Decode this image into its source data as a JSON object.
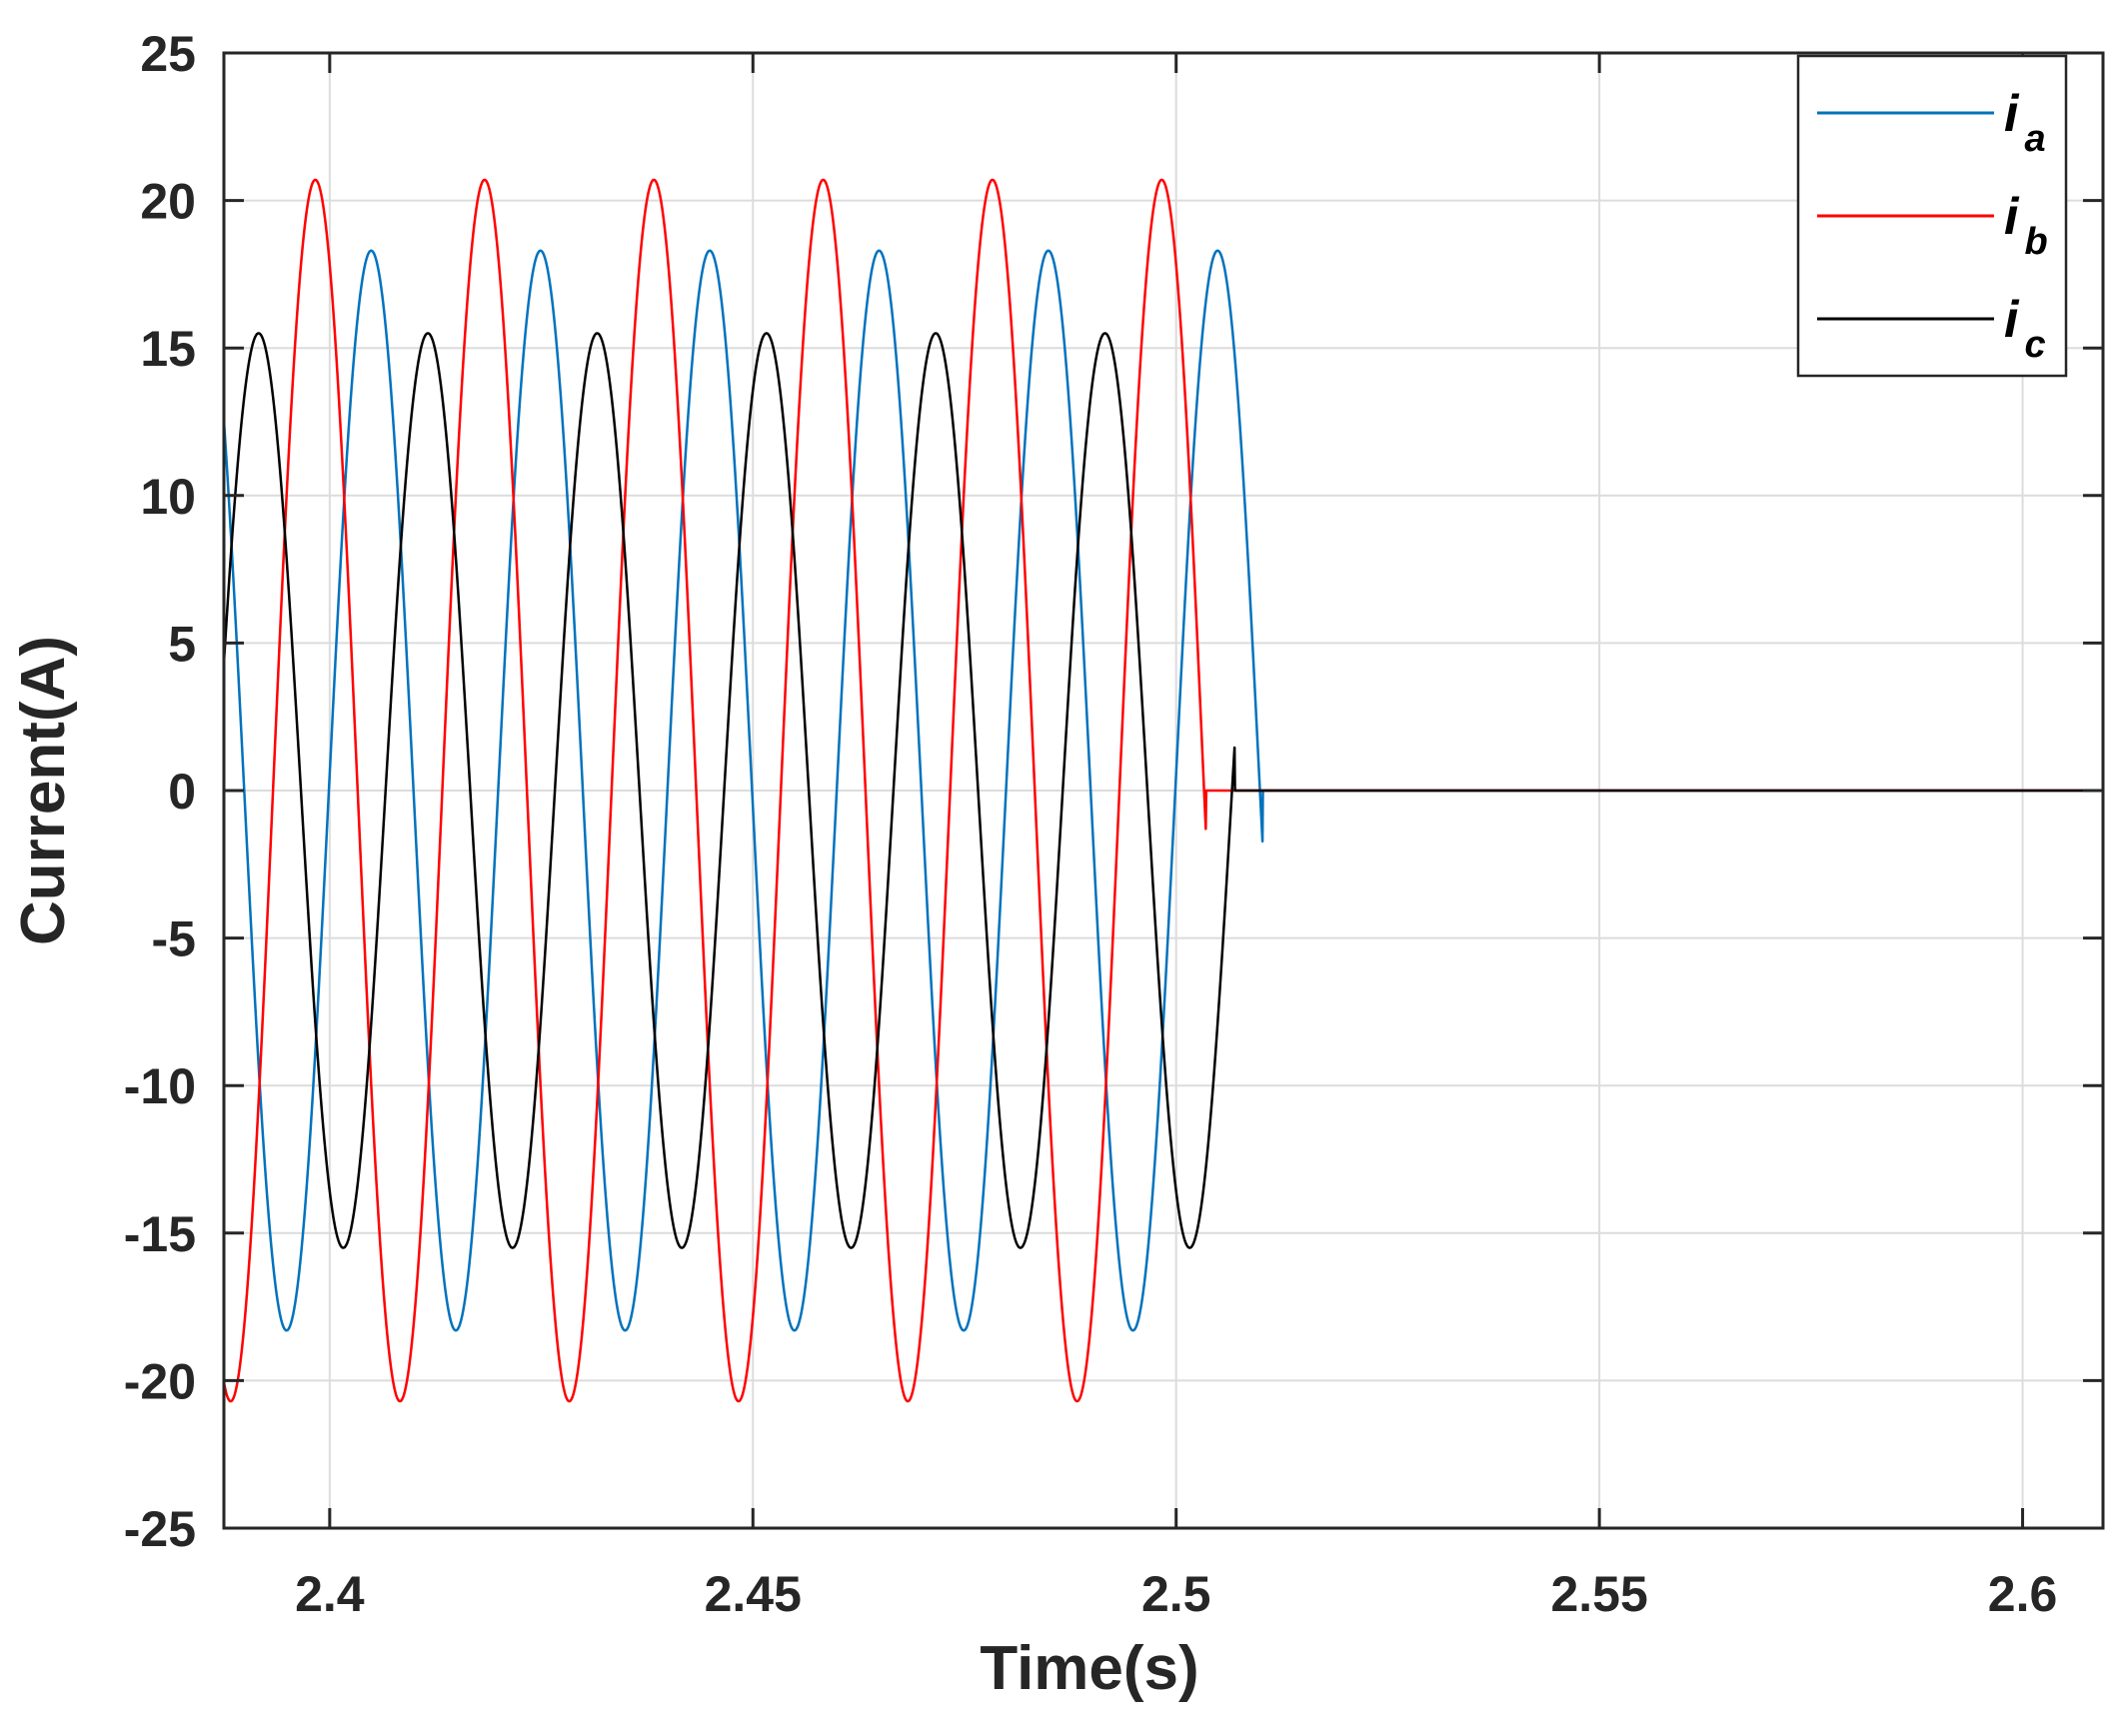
{
  "chart_data": {
    "type": "line",
    "xlabel": "Time(s)",
    "ylabel": "Current(A)",
    "xlim": [
      2.3875,
      2.6095
    ],
    "ylim": [
      -25,
      25
    ],
    "xticks": [
      2.4,
      2.45,
      2.5,
      2.55,
      2.6
    ],
    "xtick_labels": [
      "2.4",
      "2.45",
      "2.5",
      "2.55",
      "2.6"
    ],
    "yticks": [
      25,
      20,
      15,
      10,
      5,
      0,
      -5,
      -10,
      -15,
      -20,
      -25
    ],
    "ytick_labels": [
      "25",
      "20",
      "15",
      "10",
      "5",
      "0",
      "-5",
      "-10",
      "-15",
      "-20",
      "-25"
    ],
    "grid": true,
    "legend_position": "top-right",
    "series": [
      {
        "name": "i",
        "subscript": "a",
        "color": "#0072BD",
        "amplitude": 18.3,
        "peak_times": [
          2.3849,
          2.4049,
          2.4249,
          2.4449,
          2.4649,
          2.4849,
          2.5049
        ],
        "zero_after": 2.5102
      },
      {
        "name": "i",
        "subscript": "b",
        "color": "#FF0000",
        "amplitude": 20.7,
        "peak_times": [
          2.3983,
          2.4183,
          2.4383,
          2.4583,
          2.4783,
          2.4983
        ],
        "zero_after": 2.5035
      },
      {
        "name": "i",
        "subscript": "c",
        "color": "#000000",
        "amplitude": 15.5,
        "peak_times": [
          2.3916,
          2.4116,
          2.4316,
          2.4516,
          2.4716,
          2.4916
        ],
        "zero_after": 2.5069
      }
    ]
  }
}
